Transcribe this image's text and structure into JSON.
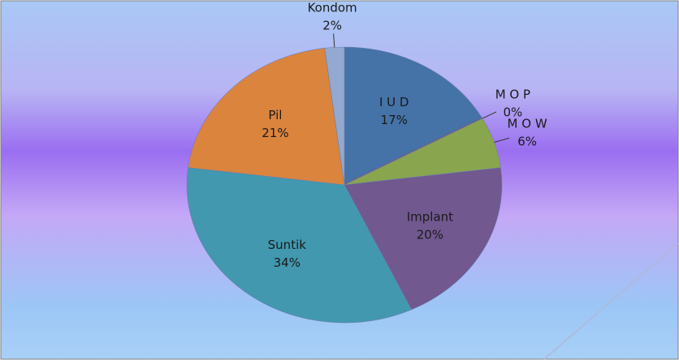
{
  "chart_data": {
    "type": "pie",
    "categories": [
      "I U D",
      "M O P",
      "M O W",
      "Implant",
      "Suntik",
      "Pil",
      "Kondom"
    ],
    "values": [
      17,
      0,
      6,
      20,
      34,
      21,
      2
    ],
    "value_labels": [
      "17%",
      "0%",
      "6%",
      "20%",
      "34%",
      "21%",
      "2%"
    ],
    "colors": [
      "#4572a7",
      "#aa4643",
      "#89a54e",
      "#71588f",
      "#4198af",
      "#db843d",
      "#93a9cf"
    ]
  }
}
